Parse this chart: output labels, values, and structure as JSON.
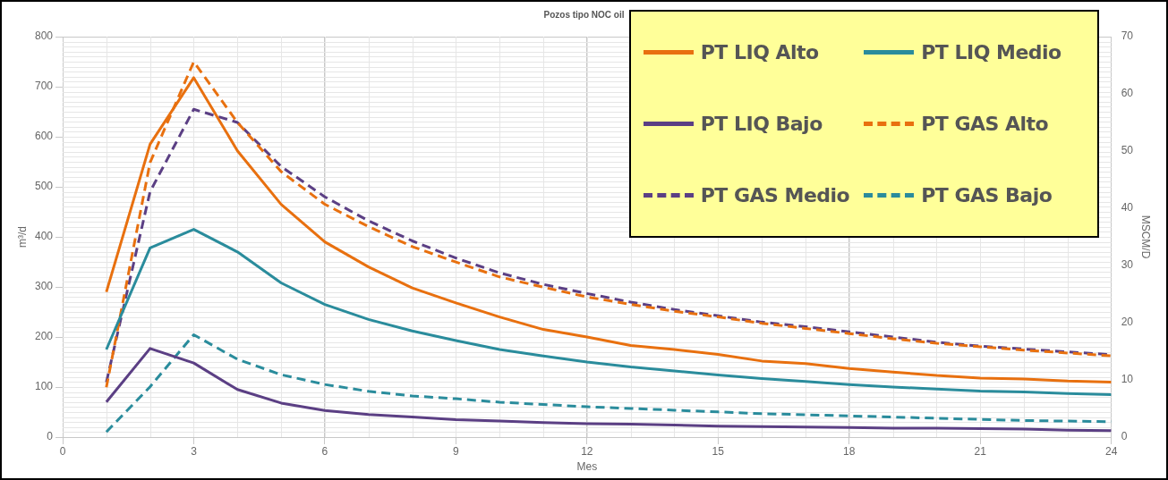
{
  "chart_data": {
    "type": "line",
    "title": "Pozos tipo NOC oil",
    "xlabel": "Mes",
    "ylabel": "m³/d",
    "y2label": "MSCM/D",
    "x": [
      1,
      2,
      3,
      4,
      5,
      6,
      7,
      8,
      9,
      10,
      11,
      12,
      13,
      14,
      15,
      16,
      17,
      18,
      19,
      20,
      21,
      22,
      23,
      24
    ],
    "xlim": [
      0,
      24
    ],
    "xticks": [
      0,
      3,
      6,
      9,
      12,
      15,
      18,
      21,
      24
    ],
    "ylim": [
      0,
      800
    ],
    "yticks": [
      0,
      100,
      200,
      300,
      400,
      500,
      600,
      700,
      800
    ],
    "y2lim": [
      0,
      70
    ],
    "y2ticks": [
      0,
      10,
      20,
      30,
      40,
      50,
      60,
      70
    ],
    "grid": true,
    "legend": "top right",
    "marker": "none",
    "series": [
      {
        "name": "PT LIQ Alto",
        "color": "#e8700f",
        "line_style": "solid",
        "values": [
          290,
          585,
          718,
          572,
          465,
          390,
          340,
          298,
          268,
          240,
          215,
          200,
          183,
          175,
          165,
          152,
          147,
          137,
          130,
          123,
          118,
          116,
          112,
          110
        ]
      },
      {
        "name": "PT LIQ Medio",
        "color": "#2a8c9c",
        "line_style": "solid",
        "values": [
          175,
          378,
          415,
          370,
          308,
          265,
          235,
          212,
          193,
          175,
          162,
          150,
          140,
          132,
          124,
          117,
          111,
          105,
          100,
          96,
          92,
          90,
          87,
          85
        ]
      },
      {
        "name": "PT LIQ Bajo",
        "color": "#5b3f84",
        "line_style": "solid",
        "values": [
          70,
          177,
          148,
          95,
          68,
          53,
          45,
          40,
          35,
          32,
          29,
          27,
          26,
          24,
          22,
          21,
          20,
          19,
          18,
          18,
          17,
          16,
          14,
          13
        ]
      },
      {
        "name": "PT GAS Alto",
        "color": "#e8700f",
        "line_style": "dashed",
        "axis": "y2",
        "values": [
          8.7,
          48,
          65.6,
          55,
          46.4,
          40.7,
          36.8,
          33.3,
          30.6,
          28,
          26.2,
          24.5,
          23.2,
          22,
          21,
          19.9,
          19,
          18.1,
          17.2,
          16.4,
          15.8,
          15.2,
          14.7,
          14.2
        ]
      },
      {
        "name": "PT GAS Medio",
        "color": "#5b3f84",
        "line_style": "dashed",
        "axis": "y2",
        "values": [
          9.6,
          42.9,
          57.3,
          55,
          47.3,
          42,
          37.8,
          34.3,
          31.3,
          28.7,
          26.7,
          25.1,
          23.6,
          22.3,
          21.2,
          20.1,
          19.3,
          18.4,
          17.5,
          16.6,
          15.9,
          15.4,
          14.9,
          14.4
        ]
      },
      {
        "name": "PT GAS Bajo",
        "color": "#2a8c9c",
        "line_style": "dashed",
        "axis": "y2",
        "values": [
          0.9,
          8.8,
          17.9,
          13.6,
          10.9,
          9.2,
          8,
          7.2,
          6.7,
          6.1,
          5.7,
          5.3,
          5,
          4.7,
          4.4,
          4.1,
          3.9,
          3.7,
          3.5,
          3.3,
          3.1,
          2.9,
          2.8,
          2.7
        ]
      }
    ]
  }
}
